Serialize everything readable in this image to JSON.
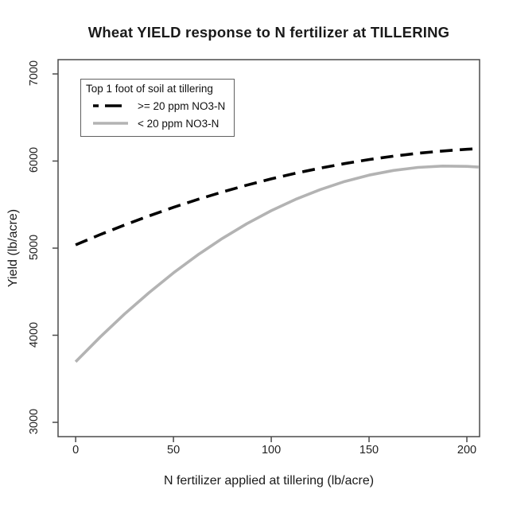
{
  "chart_data": {
    "type": "line",
    "title": "Wheat YIELD response to N fertilizer at TILLERING",
    "xlabel": "N fertilizer applied at tillering (lb/acre)",
    "ylabel": "Yield (lb/acre)",
    "xlim": [
      -9,
      206.5
    ],
    "ylim": [
      2836,
      7164
    ],
    "x_ticks": [
      0,
      50,
      100,
      150,
      200
    ],
    "y_ticks": [
      3000,
      4000,
      5000,
      6000,
      7000
    ],
    "grid": false,
    "legend_position": "top-left",
    "axis_color": "#4a4a4a",
    "legend": {
      "title": "Top 1 foot of soil at tillering"
    },
    "x": [
      0,
      12.5,
      25,
      37.5,
      50,
      62.5,
      75,
      87.5,
      100,
      112.5,
      125,
      137.5,
      150,
      162.5,
      175,
      187.5,
      200,
      206
    ],
    "series": [
      {
        "name": ">= 20 ppm NO3-N",
        "style": "dashed",
        "color": "#000000",
        "values": [
          5037,
          5155,
          5266,
          5370,
          5468,
          5560,
          5645,
          5723,
          5795,
          5860,
          5919,
          5971,
          6017,
          6056,
          6089,
          6115,
          6135,
          6142
        ]
      },
      {
        "name": "< 20 ppm NO3-N",
        "style": "solid",
        "color": "#b3b3b3",
        "values": [
          3695,
          3979,
          4244,
          4489,
          4716,
          4923,
          5111,
          5280,
          5430,
          5561,
          5672,
          5765,
          5838,
          5892,
          5927,
          5942,
          5939,
          5930
        ]
      }
    ]
  }
}
